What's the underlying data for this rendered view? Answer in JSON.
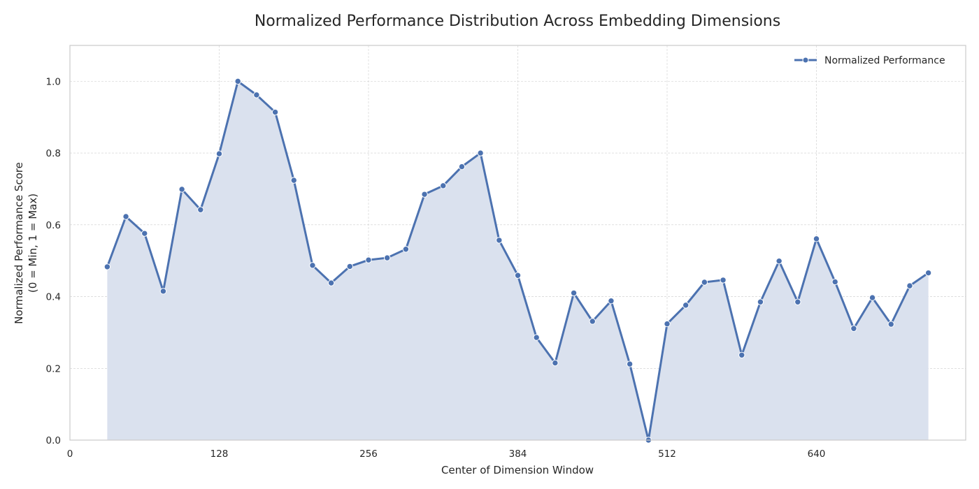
{
  "chart_data": {
    "type": "area",
    "title": "Normalized Performance Distribution Across Embedding Dimensions",
    "xlabel": "Center of Dimension Window",
    "ylabel_line1": "Normalized Performance Score",
    "ylabel_line2": "(0 = Min, 1 = Max)",
    "xlim": [
      0,
      768
    ],
    "ylim": [
      0,
      1.1
    ],
    "xticks": [
      0,
      128,
      256,
      384,
      512,
      640
    ],
    "yticks": [
      0.0,
      0.2,
      0.4,
      0.6,
      0.8,
      1.0
    ],
    "grid": true,
    "legend_position": "top-right",
    "series": [
      {
        "name": "Normalized Performance",
        "color": "#4c72b0",
        "fill_color": "#dae1ee",
        "x": [
          32,
          48,
          64,
          80,
          96,
          112,
          128,
          144,
          160,
          176,
          192,
          208,
          224,
          240,
          256,
          272,
          288,
          304,
          320,
          336,
          352,
          368,
          384,
          400,
          416,
          432,
          448,
          464,
          480,
          496,
          512,
          528,
          544,
          560,
          576,
          592,
          608,
          624,
          640,
          656,
          672,
          688,
          704,
          720,
          736
        ],
        "values": [
          0.483,
          0.623,
          0.576,
          0.415,
          0.699,
          0.642,
          0.798,
          1.0,
          0.962,
          0.914,
          0.724,
          0.487,
          0.438,
          0.484,
          0.502,
          0.508,
          0.532,
          0.685,
          0.709,
          0.762,
          0.8,
          0.557,
          0.459,
          0.286,
          0.215,
          0.41,
          0.331,
          0.388,
          0.212,
          0.0,
          0.324,
          0.376,
          0.44,
          0.446,
          0.237,
          0.385,
          0.499,
          0.385,
          0.561,
          0.441,
          0.311,
          0.397,
          0.323,
          0.43,
          0.466
        ]
      }
    ]
  }
}
